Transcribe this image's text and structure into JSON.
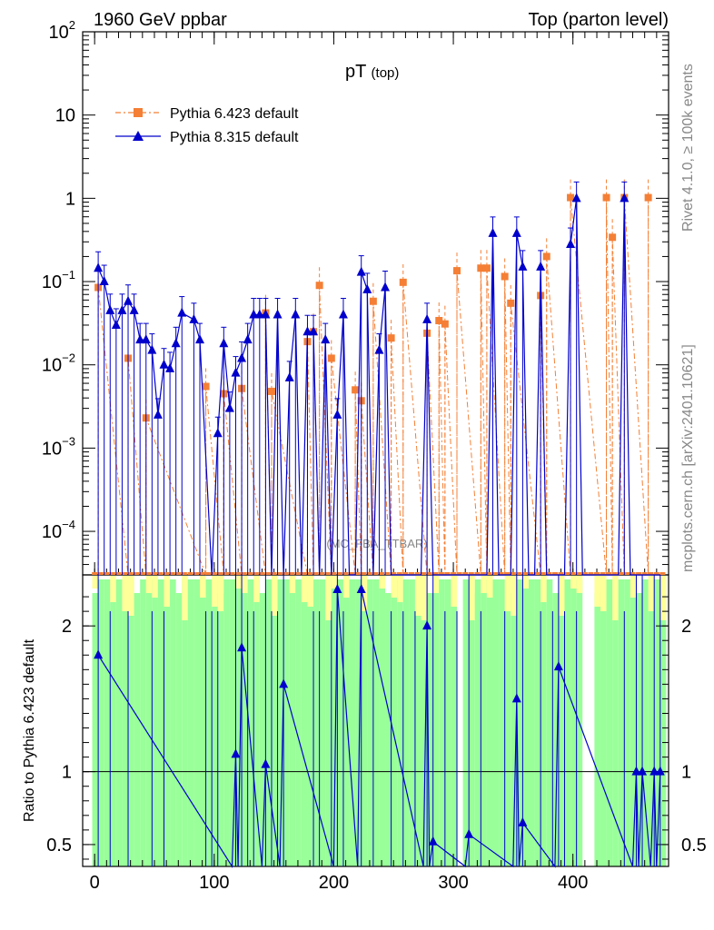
{
  "header": {
    "left": "1960 GeV ppbar",
    "right": "Top (parton level)"
  },
  "side": {
    "rivet": "Rivet 4.1.0, ≥ 100k events",
    "mcplots": "mcplots.cern.ch [arXiv:2401.10621]"
  },
  "chart_data": {
    "type": "line",
    "title": "pT",
    "title_sub": "(top)",
    "watermark": "(MC_FBA_TTBAR)",
    "xlim": [
      -10,
      480
    ],
    "ylim_main": [
      3e-05,
      100
    ],
    "ylim_ratio": [
      0.35,
      2.35
    ],
    "x_ticks": [
      "0",
      "100",
      "200",
      "300",
      "400"
    ],
    "y_ticks_main": [
      {
        "v": 100,
        "base": "10",
        "exp": "2"
      },
      {
        "v": 10,
        "base": "10",
        "exp": ""
      },
      {
        "v": 1,
        "base": "1",
        "exp": ""
      },
      {
        "v": 0.1,
        "base": "10",
        "exp": "−1"
      },
      {
        "v": 0.01,
        "base": "10",
        "exp": "−2"
      },
      {
        "v": 0.001,
        "base": "10",
        "exp": "−3"
      },
      {
        "v": 0.0001,
        "base": "10",
        "exp": "−4"
      }
    ],
    "y_ticks_ratio": [
      "0.5",
      "1",
      "2"
    ],
    "ratio_ylabel": "Ratio to Pythia 6.423 default",
    "series": [
      {
        "name": "Pythia 6.423 default",
        "color": "#f47f35",
        "marker": "square",
        "x": [
          3,
          43,
          28,
          108,
          93,
          123,
          143,
          148,
          178,
          183,
          188,
          198,
          218,
          223,
          233,
          248,
          258,
          278,
          288,
          293,
          303,
          323,
          328,
          343,
          348,
          373,
          378,
          398,
          428,
          433,
          443,
          463
        ],
        "values": [
          0.085,
          0.0023,
          0.012,
          0.0045,
          0.0055,
          0.0052,
          0.042,
          0.0048,
          0.019,
          0.025,
          0.09,
          0.012,
          0.005,
          0.0037,
          0.058,
          0.021,
          0.098,
          0.024,
          0.034,
          0.031,
          0.135,
          0.145,
          0.145,
          0.115,
          0.055,
          0.068,
          0.2,
          1.02,
          1.02,
          0.34,
          1.02,
          1.02
        ]
      },
      {
        "name": "Pythia 8.315 default",
        "color": "#0000cc",
        "marker": "triangle",
        "x": [
          3,
          8,
          13,
          18,
          23,
          28,
          33,
          38,
          43,
          48,
          53,
          58,
          63,
          68,
          73,
          83,
          88,
          98,
          103,
          108,
          113,
          118,
          123,
          128,
          133,
          138,
          143,
          148,
          153,
          158,
          163,
          168,
          173,
          178,
          183,
          188,
          193,
          198,
          203,
          208,
          213,
          218,
          223,
          228,
          233,
          238,
          243,
          248,
          253,
          258,
          263,
          268,
          273,
          278,
          283,
          288,
          293,
          298,
          303,
          308,
          313,
          318,
          323,
          328,
          333,
          338,
          343,
          348,
          353,
          358,
          363,
          368,
          373,
          378,
          383,
          388,
          393,
          398,
          403,
          408,
          413,
          418,
          423,
          428,
          433,
          438,
          443,
          448,
          453,
          458,
          463,
          468,
          473
        ],
        "values": [
          0.145,
          0.1,
          0.045,
          0.03,
          0.045,
          0.058,
          0.045,
          0.02,
          0.02,
          0.015,
          0.0025,
          0.01,
          0.009,
          0.018,
          0.042,
          0.035,
          0.02,
          1e-05,
          0.0015,
          0.018,
          0.003,
          0.008,
          0.012,
          0.02,
          0.04,
          0.04,
          0.04,
          1e-05,
          0.04,
          1e-05,
          0.007,
          0.04,
          1e-05,
          0.025,
          0.025,
          1e-05,
          0.02,
          1e-05,
          0.0025,
          0.04,
          1e-05,
          1e-05,
          0.13,
          0.08,
          1e-05,
          0.015,
          0.085,
          1e-05,
          1e-05,
          1e-05,
          1e-05,
          1e-05,
          1e-05,
          0.035,
          1e-05,
          1e-05,
          1e-05,
          1e-05,
          1e-05,
          1e-05,
          1e-05,
          1e-05,
          1e-05,
          1e-05,
          0.38,
          1e-05,
          1e-05,
          1e-05,
          0.38,
          0.15,
          1e-05,
          1e-05,
          0.15,
          1e-05,
          1e-05,
          1e-05,
          1e-05,
          0.28,
          1.0,
          1e-05,
          1e-05,
          1e-05,
          1e-05,
          1e-05,
          1e-05,
          1e-05,
          1.0,
          1e-05,
          1e-05,
          1e-05,
          1e-05,
          1e-05,
          1e-05
        ]
      }
    ],
    "ratio_points": {
      "x": [
        3,
        118,
        123,
        143,
        158,
        203,
        223,
        278,
        283,
        313,
        353,
        358,
        388,
        453,
        458,
        468,
        473
      ],
      "values": [
        1.8,
        1.12,
        1.85,
        1.05,
        1.6,
        2.25,
        2.25,
        2.0,
        0.52,
        0.57,
        1.5,
        0.65,
        1.72,
        1.0,
        1.0,
        1.0,
        1.0
      ]
    }
  }
}
